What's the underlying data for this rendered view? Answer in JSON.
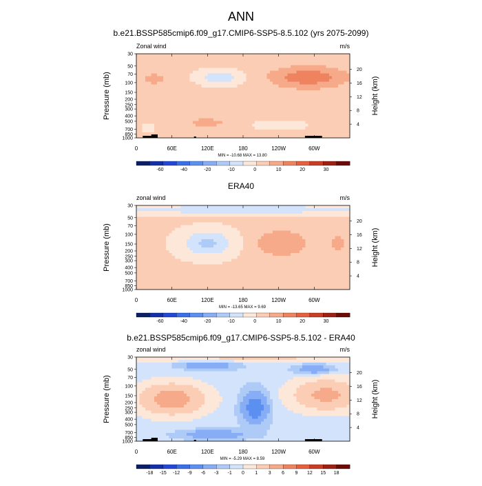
{
  "page": {
    "main_title": "ANN"
  },
  "chart_data": [
    {
      "type": "heatmap",
      "title": "b.e21.BSSP585cmip6.f09_g17.CMIP6-SSP5-8.5.102 (yrs 2075-2099)",
      "left_string": "Zonal wind",
      "right_string": "m/s",
      "xlabel": "",
      "ylabel": "Pressure (mb)",
      "ylabel_right": "Height (km)",
      "x_ticks": [
        "0",
        "60E",
        "120E",
        "180",
        "120W",
        "60W"
      ],
      "xlim": [
        0,
        360
      ],
      "y_ticks": [
        "30",
        "50",
        "70",
        "100",
        "150",
        "200",
        "250",
        "300",
        "400",
        "500",
        "700",
        "850",
        "1000"
      ],
      "y_ticks_right": [
        "4",
        "8",
        "12",
        "16",
        "20"
      ],
      "ylim": [
        1000,
        30
      ],
      "log_scale_y": true,
      "stats": "MIN = -10.68  MAX = 13.80",
      "colorbar": {
        "levels": [
          -70,
          -60,
          -50,
          -40,
          -30,
          -20,
          -15,
          -10,
          -5,
          0,
          5,
          10,
          15,
          20,
          25,
          30
        ],
        "labels": [
          "-60",
          "-40",
          "-20",
          "-10",
          "0",
          "10",
          "20",
          "30"
        ],
        "colors": [
          "#0a1f66",
          "#1430a8",
          "#2447d6",
          "#3a6fe8",
          "#5b8ff0",
          "#86adf5",
          "#aecbf8",
          "#d2e3fb",
          "#fde7d9",
          "#fbcdb4",
          "#f6aa8a",
          "#ef8360",
          "#e4603e",
          "#c93d25",
          "#9e2114",
          "#6e0a08"
        ]
      },
      "orography_note": "black bars mark surface topography"
    },
    {
      "type": "heatmap",
      "title": "ERA40",
      "left_string": "zonal wind",
      "right_string": "m/s",
      "xlabel": "",
      "ylabel": "Pressure (mb)",
      "ylabel_right": "Height (km)",
      "x_ticks": [
        "0",
        "60E",
        "120E",
        "180",
        "120W",
        "60W"
      ],
      "xlim": [
        0,
        360
      ],
      "y_ticks": [
        "30",
        "50",
        "70",
        "100",
        "150",
        "200",
        "250",
        "300",
        "400",
        "500",
        "700",
        "850",
        "1000"
      ],
      "y_ticks_right": [
        "4",
        "8",
        "12",
        "16",
        "20"
      ],
      "ylim": [
        1000,
        30
      ],
      "log_scale_y": true,
      "stats": "MIN = -13.65  MAX =   9.69",
      "colorbar": {
        "levels": [
          -70,
          -60,
          -50,
          -40,
          -30,
          -20,
          -15,
          -10,
          -5,
          0,
          5,
          10,
          15,
          20,
          25,
          30
        ],
        "labels": [
          "-60",
          "-40",
          "-20",
          "-10",
          "0",
          "10",
          "20",
          "30"
        ],
        "colors": [
          "#0a1f66",
          "#1430a8",
          "#2447d6",
          "#3a6fe8",
          "#5b8ff0",
          "#86adf5",
          "#aecbf8",
          "#d2e3fb",
          "#fde7d9",
          "#fbcdb4",
          "#f6aa8a",
          "#ef8360",
          "#e4603e",
          "#c93d25",
          "#9e2114",
          "#6e0a08"
        ]
      }
    },
    {
      "type": "heatmap",
      "title": "b.e21.BSSP585cmip6.f09_g17.CMIP6-SSP5-8.5.102 - ERA40",
      "left_string": "zonal wind",
      "right_string": "m/s",
      "xlabel": "",
      "ylabel": "Pressure (mb)",
      "ylabel_right": "Height (km)",
      "x_ticks": [
        "0",
        "60E",
        "120E",
        "180",
        "120W",
        "60W"
      ],
      "xlim": [
        0,
        360
      ],
      "y_ticks": [
        "30",
        "50",
        "70",
        "100",
        "150",
        "200",
        "250",
        "300",
        "400",
        "500",
        "700",
        "850",
        "1000"
      ],
      "y_ticks_right": [
        "4",
        "8",
        "12",
        "16",
        "20"
      ],
      "ylim": [
        1000,
        30
      ],
      "log_scale_y": true,
      "stats": "MIN =  -5.29  MAX =   8.59",
      "colorbar": {
        "levels": [
          -18,
          -15,
          -12,
          -9,
          -6,
          -3,
          -1,
          0,
          1,
          3,
          6,
          9,
          12,
          15,
          18
        ],
        "labels": [
          "-18",
          "-15",
          "-12",
          "-9",
          "-6",
          "-3",
          "-1",
          "0",
          "1",
          "3",
          "6",
          "9",
          "12",
          "15",
          "18"
        ],
        "colors": [
          "#0a1f66",
          "#1430a8",
          "#2447d6",
          "#3a6fe8",
          "#5b8ff0",
          "#86adf5",
          "#aecbf8",
          "#d2e3fb",
          "#fde7d9",
          "#fbcdb4",
          "#f6aa8a",
          "#ef8360",
          "#e4603e",
          "#c93d25",
          "#9e2114",
          "#6e0a08"
        ]
      },
      "orography_note": "black bars mark surface topography"
    }
  ]
}
